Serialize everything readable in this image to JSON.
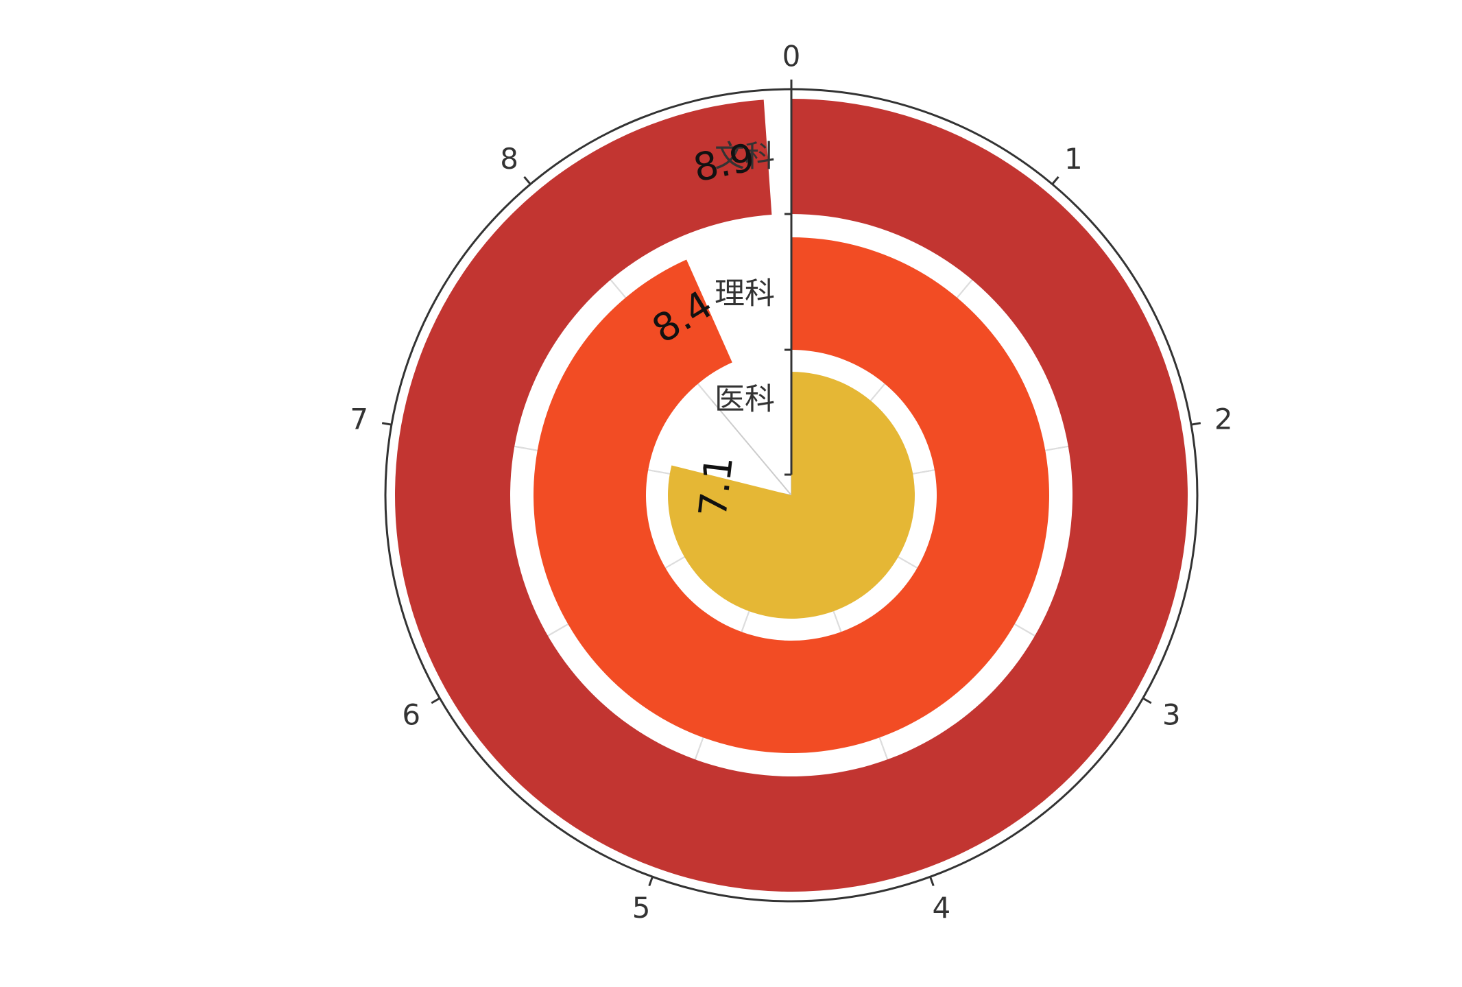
{
  "chart_data": {
    "type": "polar-bar",
    "angle_axis": {
      "min": 0,
      "max": 9,
      "ticks": [
        "0",
        "1",
        "2",
        "3",
        "4",
        "5",
        "6",
        "7",
        "8"
      ],
      "direction": "clockwise",
      "start": "top"
    },
    "categories": [
      "文科",
      "理科",
      "医科"
    ],
    "values": [
      8.9,
      8.4,
      7.1
    ],
    "data_labels": [
      "8.9",
      "8.4",
      "7.1"
    ],
    "colors": [
      "#c23531",
      "#f24c24",
      "#e5b735"
    ]
  }
}
